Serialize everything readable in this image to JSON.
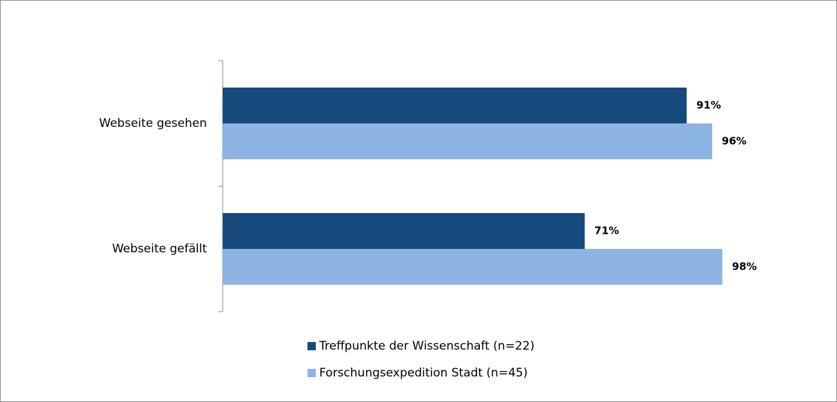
{
  "chart_data": {
    "type": "bar",
    "orientation": "horizontal",
    "categories": [
      "Webseite gesehen",
      "Webseite gefällt"
    ],
    "series": [
      {
        "name": "Treffpunkte der Wissenschaft (n=22)",
        "color": "#174a7c",
        "values": [
          91,
          71
        ],
        "value_labels": [
          "91%",
          "71%"
        ]
      },
      {
        "name": "Forschungsexpedition Stadt (n=45)",
        "color": "#8db4e2",
        "values": [
          96,
          98
        ],
        "value_labels": [
          "96%",
          "98%"
        ]
      }
    ]
  }
}
